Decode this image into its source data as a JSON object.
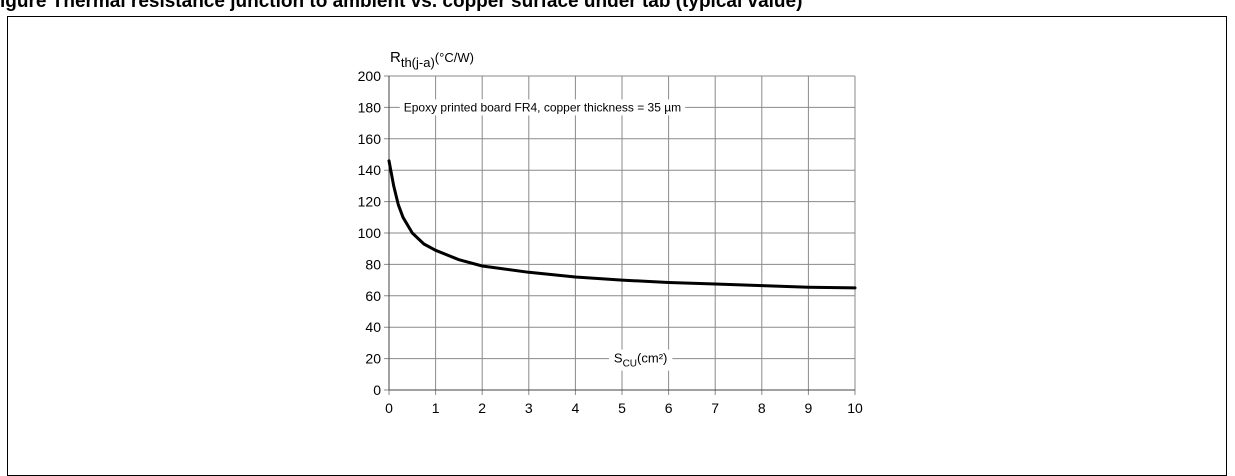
{
  "page_title": "igure  Thermal resistance junction to ambient vs. copper surface under tab (typical value)",
  "chart_data": {
    "type": "line",
    "ylabel": "R",
    "ylabel_sub": "th(j-a)",
    "ylabel_unit": "(°C/W)",
    "xlabel": "S",
    "xlabel_sub": "CU",
    "xlabel_unit": "(cm²)",
    "annotation": "Epoxy printed board FR4, copper thickness = 35 µm",
    "x_ticks": [
      "0",
      "1",
      "2",
      "3",
      "4",
      "5",
      "6",
      "7",
      "8",
      "9",
      "10"
    ],
    "y_ticks": [
      "0",
      "20",
      "40",
      "60",
      "80",
      "100",
      "120",
      "140",
      "160",
      "180",
      "200"
    ],
    "xlim": [
      0,
      10
    ],
    "ylim": [
      0,
      200
    ],
    "grid": true,
    "series": [
      {
        "x": [
          0.0,
          0.1,
          0.2,
          0.3,
          0.5,
          0.75,
          1.0,
          1.5,
          2.0,
          3.0,
          4.0,
          5.0,
          6.0,
          7.0,
          8.0,
          9.0,
          10.0
        ],
        "y": [
          146,
          130,
          118,
          110,
          100,
          93,
          89,
          83,
          79,
          75,
          72,
          70,
          68.5,
          67.5,
          66.5,
          65.5,
          65
        ]
      }
    ]
  }
}
